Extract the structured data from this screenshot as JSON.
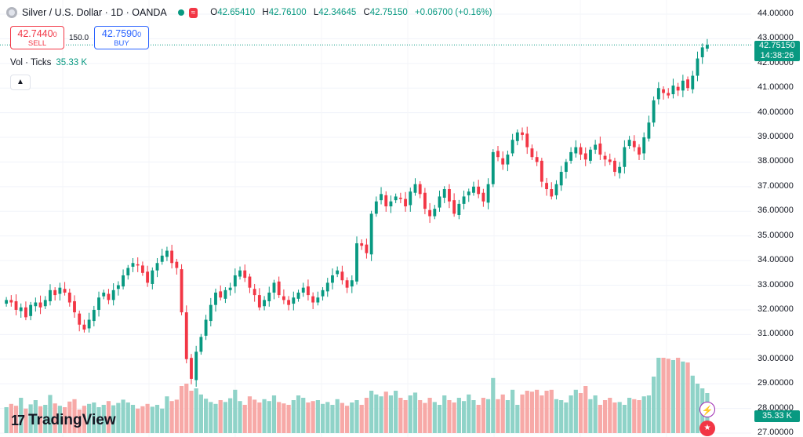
{
  "header": {
    "symbol": "Silver / U.S. Dollar · 1D · OANDA",
    "badge": "≈",
    "ohlc": [
      {
        "key": "O",
        "value": "42.65410"
      },
      {
        "key": "H",
        "value": "42.76100"
      },
      {
        "key": "L",
        "value": "42.34645"
      },
      {
        "key": "C",
        "value": "42.75150"
      },
      {
        "key": "",
        "value": "+0.06700 (+0.16%)"
      }
    ]
  },
  "trade": {
    "sell_price": "42.7440",
    "sell_price_small": "0",
    "sell_label": "SELL",
    "spread": "150.0",
    "buy_price": "42.7590",
    "buy_price_small": "0",
    "buy_label": "BUY"
  },
  "volume_legend": {
    "label": "Vol · Ticks",
    "value": "35.33 K"
  },
  "price_tag": {
    "price": "42.75150",
    "countdown": "14:38:26"
  },
  "volume_tag": "35.33 K",
  "logo": {
    "mark": "17",
    "text": "TradingView"
  },
  "colors": {
    "up": "#089981",
    "down": "#f23645",
    "vol_up": "#8fd3c8",
    "vol_down": "#f7a9a7"
  },
  "icons": {
    "collapse": "chevron-up-icon",
    "flash": "lightning-icon",
    "flag": "us-flag-icon",
    "symbol": "silver-icon"
  },
  "chart_data": {
    "type": "candlestick",
    "y_axis": {
      "min": 27.0,
      "max": 44.0,
      "step": 1.0,
      "position": "right",
      "tick_labels": [
        "44.00000",
        "43.00000",
        "42.00000",
        "41.00000",
        "40.00000",
        "39.00000",
        "38.00000",
        "37.00000",
        "36.00000",
        "35.00000",
        "34.00000",
        "33.00000",
        "32.00000",
        "31.00000",
        "30.00000",
        "29.00000",
        "28.00000",
        "27.00000"
      ]
    },
    "last_price": 42.7515,
    "closes": [
      32.4,
      32.3,
      32.0,
      32.1,
      31.7,
      32.2,
      32.3,
      32.1,
      32.4,
      32.8,
      32.6,
      32.9,
      32.7,
      32.3,
      31.9,
      31.4,
      31.2,
      31.6,
      32.0,
      32.5,
      32.7,
      32.4,
      32.8,
      33.0,
      33.4,
      33.7,
      33.9,
      33.8,
      33.5,
      33.1,
      33.6,
      33.9,
      34.2,
      34.4,
      33.9,
      33.7,
      31.9,
      30.0,
      29.2,
      30.3,
      30.9,
      31.6,
      32.2,
      32.7,
      32.5,
      32.8,
      32.9,
      33.4,
      33.6,
      33.3,
      32.9,
      32.6,
      32.1,
      32.4,
      32.7,
      33.1,
      32.6,
      32.4,
      32.2,
      32.5,
      32.7,
      32.9,
      32.6,
      32.3,
      32.5,
      32.8,
      33.1,
      33.4,
      33.6,
      33.2,
      32.9,
      33.2,
      34.7,
      34.6,
      34.3,
      35.9,
      36.4,
      36.7,
      36.2,
      36.4,
      36.6,
      36.5,
      36.2,
      36.8,
      37.1,
      36.7,
      36.1,
      35.8,
      36.1,
      36.6,
      36.9,
      36.4,
      35.9,
      36.3,
      36.6,
      36.8,
      37.0,
      36.7,
      36.4,
      37.1,
      38.4,
      38.2,
      37.9,
      38.3,
      38.9,
      39.2,
      39.1,
      38.6,
      38.2,
      38.0,
      37.2,
      36.9,
      36.6,
      37.1,
      37.6,
      38.0,
      38.4,
      38.6,
      38.3,
      38.1,
      38.5,
      38.7,
      38.3,
      38.1,
      38.0,
      37.6,
      37.8,
      38.6,
      38.9,
      38.6,
      38.3,
      39.0,
      39.6,
      40.5,
      41.0,
      40.8,
      40.7,
      41.1,
      40.9,
      41.3,
      41.0,
      41.5,
      42.2,
      42.65,
      42.75
    ],
    "volumes": [
      0.55,
      0.62,
      0.58,
      0.75,
      0.52,
      0.61,
      0.7,
      0.57,
      0.6,
      0.81,
      0.63,
      0.58,
      0.55,
      0.67,
      0.72,
      0.5,
      0.58,
      0.62,
      0.65,
      0.55,
      0.6,
      0.68,
      0.59,
      0.64,
      0.71,
      0.65,
      0.6,
      0.52,
      0.57,
      0.62,
      0.56,
      0.6,
      0.52,
      0.78,
      0.68,
      0.71,
      1.0,
      1.05,
      0.9,
      0.95,
      0.82,
      0.73,
      0.66,
      0.62,
      0.7,
      0.66,
      0.74,
      0.92,
      0.68,
      0.6,
      0.78,
      0.71,
      0.65,
      0.72,
      0.68,
      0.8,
      0.66,
      0.63,
      0.6,
      0.7,
      0.8,
      0.75,
      0.65,
      0.68,
      0.7,
      0.62,
      0.66,
      0.6,
      0.72,
      0.64,
      0.58,
      0.65,
      0.7,
      0.6,
      0.75,
      0.9,
      0.82,
      0.78,
      0.88,
      0.8,
      0.9,
      0.75,
      0.7,
      0.8,
      0.86,
      0.7,
      0.64,
      0.75,
      0.66,
      0.6,
      0.8,
      0.7,
      0.65,
      0.75,
      0.68,
      0.82,
      0.7,
      0.6,
      0.75,
      0.72,
      1.17,
      0.72,
      0.82,
      0.7,
      0.92,
      0.6,
      0.82,
      0.9,
      0.88,
      0.92,
      0.8,
      0.9,
      0.92,
      0.72,
      0.7,
      0.65,
      0.8,
      0.92,
      0.85,
      1.0,
      0.72,
      0.8,
      0.6,
      0.7,
      0.75,
      0.65,
      0.66,
      0.6,
      0.75,
      0.72,
      0.7,
      0.78,
      0.8,
      1.2,
      1.6,
      1.6,
      1.58,
      1.55,
      1.6,
      1.52,
      1.5,
      1.22,
      1.05,
      0.95,
      0.85
    ]
  }
}
